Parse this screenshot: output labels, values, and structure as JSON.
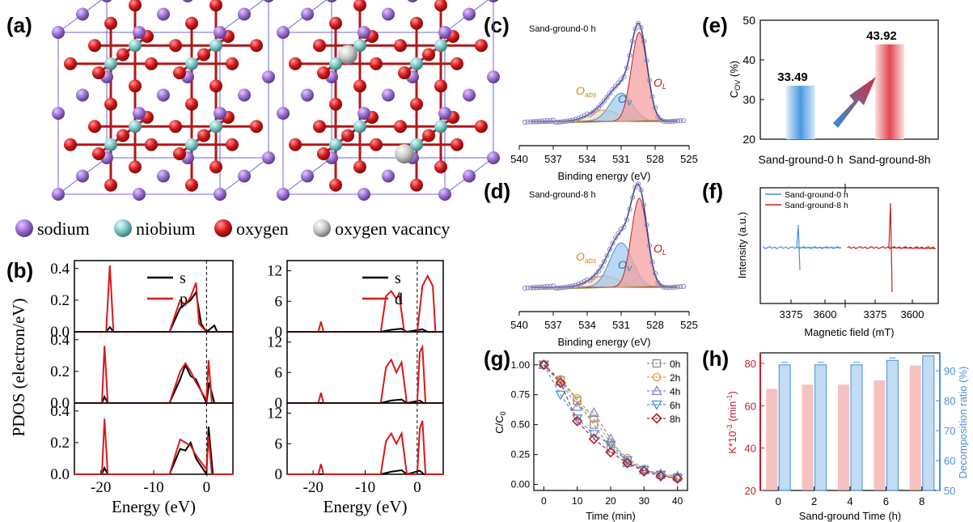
{
  "panel_labels": {
    "a": "(a)",
    "b": "(b)",
    "c": "(c)",
    "d": "(d)",
    "e": "(e)",
    "f": "(f)",
    "g": "(g)",
    "h": "(h)"
  },
  "colors": {
    "sodium": "#9b6fd0",
    "niobium": "#7fc6c6",
    "oxygen": "#d7191c",
    "vacancy": "#c8c8c8",
    "blue": "#4a90d9",
    "red": "#c0202a",
    "purple": "#8a86c8",
    "orange": "#e39a2a",
    "brown": "#b5651d"
  },
  "legend_a": [
    {
      "label": "sodium",
      "color": "#9b6fd0"
    },
    {
      "label": "niobium",
      "color": "#7fc6c6"
    },
    {
      "label": "oxygen",
      "color": "#d7191c"
    },
    {
      "label": "oxygen vacancy",
      "color": "#c8c8c8"
    }
  ],
  "chart_data": [
    {
      "id": "b-left",
      "type": "line",
      "xlabel": "Energy (eV)",
      "ylabel": "PDOS (electron/eV)",
      "xlim": [
        -25,
        5
      ],
      "ylim": [
        0,
        0.45
      ],
      "xticks": [
        "-20",
        "-10",
        "0"
      ],
      "yticks": [
        "0.0",
        "0.2",
        "0.4"
      ],
      "series": [
        {
          "name": "s",
          "color": "#000000"
        },
        {
          "name": "p",
          "color": "#d7191c"
        }
      ],
      "subplots": [
        {
          "p": [
            [
              -25,
              0
            ],
            [
              -19,
              0
            ],
            [
              -18.3,
              0.42
            ],
            [
              -17.6,
              0
            ],
            [
              -7,
              0
            ],
            [
              -6,
              0.1
            ],
            [
              -5,
              0.2
            ],
            [
              -4,
              0.17
            ],
            [
              -3,
              0.22
            ],
            [
              -2,
              0.31
            ],
            [
              -1.4,
              0.05
            ],
            [
              0,
              0
            ],
            [
              5,
              0
            ]
          ],
          "s": [
            [
              -25,
              0
            ],
            [
              -19,
              0
            ],
            [
              -18.3,
              0.03
            ],
            [
              -17.6,
              0
            ],
            [
              -7,
              0
            ],
            [
              -5,
              0.15
            ],
            [
              -3,
              0.2
            ],
            [
              -2,
              0.25
            ],
            [
              -1,
              0.05
            ],
            [
              0,
              0
            ],
            [
              1.5,
              0.04
            ],
            [
              2,
              0
            ],
            [
              5,
              0
            ]
          ]
        },
        {
          "p": [
            [
              -25,
              0
            ],
            [
              -19.8,
              0
            ],
            [
              -19.3,
              0.36
            ],
            [
              -18.7,
              0
            ],
            [
              -7,
              0
            ],
            [
              -5,
              0.2
            ],
            [
              -4,
              0.25
            ],
            [
              -3,
              0.2
            ],
            [
              -2,
              0.13
            ],
            [
              0,
              0.02
            ],
            [
              0.4,
              0.27
            ],
            [
              1,
              0
            ],
            [
              5,
              0
            ]
          ],
          "s": [
            [
              -25,
              0
            ],
            [
              -19.8,
              0
            ],
            [
              -19.3,
              0.04
            ],
            [
              -18.7,
              0
            ],
            [
              -7,
              0
            ],
            [
              -5,
              0.15
            ],
            [
              -4,
              0.24
            ],
            [
              -3,
              0.17
            ],
            [
              -2,
              0.15
            ],
            [
              0,
              0
            ],
            [
              0.5,
              0.13
            ],
            [
              1.5,
              0
            ],
            [
              5,
              0
            ]
          ]
        },
        {
          "p": [
            [
              -25,
              0
            ],
            [
              -19.8,
              0
            ],
            [
              -19.3,
              0.35
            ],
            [
              -18.7,
              0
            ],
            [
              -7,
              0
            ],
            [
              -5,
              0.22
            ],
            [
              -4,
              0.2
            ],
            [
              -3,
              0.18
            ],
            [
              -2,
              0.12
            ],
            [
              0,
              0.03
            ],
            [
              0.4,
              0.24
            ],
            [
              1,
              0
            ],
            [
              5,
              0
            ]
          ],
          "s": [
            [
              -25,
              0
            ],
            [
              -19.8,
              0
            ],
            [
              -19.3,
              0.04
            ],
            [
              -18.7,
              0
            ],
            [
              -7,
              0
            ],
            [
              -5,
              0.16
            ],
            [
              -4,
              0.15
            ],
            [
              -3,
              0.2
            ],
            [
              -2,
              0.1
            ],
            [
              0,
              0
            ],
            [
              0.4,
              0.3
            ],
            [
              1.2,
              0
            ],
            [
              5,
              0
            ]
          ]
        }
      ]
    },
    {
      "id": "b-right",
      "type": "line",
      "xlabel": "Energy (eV)",
      "ylabel": "",
      "xlim": [
        -25,
        5
      ],
      "ylim": [
        0,
        14
      ],
      "xticks": [
        "-20",
        "-10",
        "0"
      ],
      "yticks": [
        "0",
        "6",
        "12"
      ],
      "series": [
        {
          "name": "s",
          "color": "#000000"
        },
        {
          "name": "d",
          "color": "#d7191c"
        }
      ],
      "subplots": [
        {
          "d": [
            [
              -25,
              0
            ],
            [
              -19,
              0
            ],
            [
              -18.5,
              2
            ],
            [
              -18,
              0
            ],
            [
              -7,
              0
            ],
            [
              -6,
              7
            ],
            [
              -5,
              8
            ],
            [
              -4,
              6.5
            ],
            [
              -3.5,
              7.5
            ],
            [
              -2.5,
              0
            ],
            [
              0,
              0
            ],
            [
              1,
              9
            ],
            [
              2,
              11
            ],
            [
              3,
              9
            ],
            [
              3.5,
              0
            ],
            [
              5,
              0
            ]
          ],
          "s": [
            [
              -25,
              0
            ],
            [
              -7,
              0
            ],
            [
              -5,
              0.4
            ],
            [
              -3,
              0.6
            ],
            [
              -2,
              0
            ],
            [
              1,
              0.5
            ],
            [
              2,
              0
            ],
            [
              5,
              0
            ]
          ]
        },
        {
          "d": [
            [
              -25,
              0
            ],
            [
              -19,
              0
            ],
            [
              -18.5,
              2
            ],
            [
              -18,
              0
            ],
            [
              -7,
              0
            ],
            [
              -6,
              7
            ],
            [
              -5,
              8.5
            ],
            [
              -4,
              6
            ],
            [
              -3,
              8
            ],
            [
              -2,
              0
            ],
            [
              0,
              0
            ],
            [
              0.5,
              10
            ],
            [
              1,
              11
            ],
            [
              1.6,
              0
            ],
            [
              5,
              0
            ]
          ],
          "s": [
            [
              -25,
              0
            ],
            [
              -7,
              0
            ],
            [
              -5,
              0.5
            ],
            [
              -3,
              0.7
            ],
            [
              -2,
              0
            ],
            [
              0.5,
              0.5
            ],
            [
              1.2,
              0
            ],
            [
              5,
              0
            ]
          ]
        },
        {
          "d": [
            [
              -25,
              0
            ],
            [
              -19,
              0
            ],
            [
              -18.5,
              2
            ],
            [
              -18,
              0
            ],
            [
              -7,
              0
            ],
            [
              -6,
              6.5
            ],
            [
              -5,
              8
            ],
            [
              -4,
              6
            ],
            [
              -3,
              8
            ],
            [
              -2,
              0
            ],
            [
              0,
              0
            ],
            [
              0.5,
              9
            ],
            [
              1,
              10.5
            ],
            [
              1.6,
              0
            ],
            [
              5,
              0
            ]
          ],
          "s": [
            [
              -25,
              0
            ],
            [
              -7,
              0
            ],
            [
              -5,
              0.5
            ],
            [
              -3,
              0.8
            ],
            [
              -2,
              0
            ],
            [
              0.5,
              0.7
            ],
            [
              1.3,
              0
            ],
            [
              5,
              0
            ]
          ]
        }
      ]
    },
    {
      "id": "c",
      "type": "line",
      "title": "Sand-ground-0 h",
      "xlabel": "Binding energy (eV)",
      "xlim": [
        540,
        525
      ],
      "xticks": [
        "540",
        "537",
        "534",
        "531",
        "528",
        "525"
      ],
      "peak_labels": {
        "abs": "O",
        "abs_sub": "abs",
        "v": "O",
        "v_sub": "V",
        "l": "O",
        "l_sub": "L"
      }
    },
    {
      "id": "d",
      "type": "line",
      "title": "Sand-ground-8 h",
      "xlabel": "Binding energy (eV)",
      "xlim": [
        540,
        525
      ],
      "xticks": [
        "540",
        "537",
        "534",
        "531",
        "528",
        "525"
      ],
      "peak_labels": {
        "abs": "O",
        "abs_sub": "abs",
        "v": "O",
        "v_sub": "V",
        "l": "O",
        "l_sub": "L"
      }
    },
    {
      "id": "e",
      "type": "bar",
      "ylabel": "C",
      "ylabel_sub": "OV",
      "ylabel_unit": " (%)",
      "ylim": [
        20,
        50
      ],
      "yticks": [
        "20",
        "30",
        "40",
        "50"
      ],
      "categories": [
        "Sand-ground-0 h",
        "Sand-ground-8h"
      ],
      "values": [
        33.49,
        43.92
      ],
      "value_labels": [
        "33.49",
        "43.92"
      ]
    },
    {
      "id": "f",
      "type": "line",
      "xlabel": "Magnetic field (mT)",
      "ylabel": "Intensity (a.u.)",
      "xticks": [
        "3375",
        "3600",
        "3375",
        "3600"
      ],
      "series": [
        {
          "name": "Sand-ground-0 h",
          "color": "#4a90d9"
        },
        {
          "name": "Sand-ground-8 h",
          "color": "#c0202a"
        }
      ]
    },
    {
      "id": "g",
      "type": "line",
      "xlabel": "Time (min)",
      "ylabel": "C/C",
      "ylabel_sub": "0",
      "xlim": [
        -3,
        43
      ],
      "ylim": [
        -0.05,
        1.1
      ],
      "xticks": [
        "0",
        "10",
        "20",
        "30",
        "40"
      ],
      "yticks": [
        "0.00",
        "0.25",
        "0.50",
        "0.75",
        "1.00"
      ],
      "x": [
        0,
        5,
        10,
        15,
        20,
        25,
        30,
        35,
        40
      ],
      "series": [
        {
          "name": "0h",
          "color": "#8c8c8c",
          "marker": "square",
          "values": [
            1.0,
            0.87,
            0.7,
            0.5,
            0.3,
            0.2,
            0.12,
            0.08,
            0.06
          ]
        },
        {
          "name": "2h",
          "color": "#e39a2a",
          "marker": "circle",
          "values": [
            1.0,
            0.88,
            0.72,
            0.55,
            0.35,
            0.22,
            0.13,
            0.08,
            0.05
          ]
        },
        {
          "name": "4h",
          "color": "#8a86c8",
          "marker": "triangle-up",
          "values": [
            1.0,
            0.86,
            0.65,
            0.6,
            0.38,
            0.18,
            0.12,
            0.09,
            0.07
          ]
        },
        {
          "name": "6h",
          "color": "#4a90d9",
          "marker": "triangle-down",
          "values": [
            1.0,
            0.75,
            0.55,
            0.42,
            0.33,
            0.2,
            0.12,
            0.08,
            0.05
          ]
        },
        {
          "name": "8h",
          "color": "#b32025",
          "marker": "diamond",
          "values": [
            1.0,
            0.85,
            0.53,
            0.38,
            0.27,
            0.18,
            0.11,
            0.07,
            0.05
          ]
        }
      ]
    },
    {
      "id": "h",
      "type": "bar",
      "xlabel": "Sand-ground Time (h)",
      "ylabel_left": "K*10",
      "ylabel_left_sup": "-3",
      "ylabel_left_unit": " (min",
      "ylabel_left_unit_sup": "-1",
      "ylabel_left_close": ")",
      "ylabel_right": "Decomposition ratio (%)",
      "categories": [
        "0",
        "2",
        "4",
        "6",
        "8"
      ],
      "ylim_left": [
        20,
        85
      ],
      "yticks_left": [
        "20",
        "40",
        "60",
        "80"
      ],
      "ylim_right": [
        50,
        96
      ],
      "yticks_right": [
        "50",
        "60",
        "70",
        "80",
        "90"
      ],
      "series": [
        {
          "name": "K",
          "color": "#f2a6a6",
          "axis": "left",
          "values": [
            68,
            70,
            70,
            72,
            79
          ]
        },
        {
          "name": "Decomposition ratio",
          "color": "#a8cdf0",
          "axis": "right",
          "values": [
            92,
            92,
            92,
            93.5,
            95
          ]
        }
      ]
    }
  ]
}
